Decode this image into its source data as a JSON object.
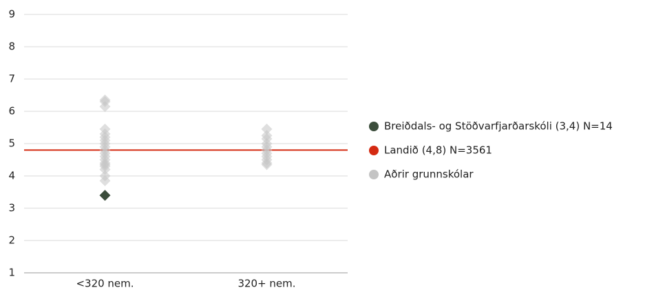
{
  "chart_data": {
    "type": "scatter",
    "categories": [
      "<320 nem.",
      "320+ nem."
    ],
    "ylim": [
      1,
      9
    ],
    "yticks": [
      1,
      2,
      3,
      4,
      5,
      6,
      7,
      8,
      9
    ],
    "grid": true,
    "legend": "right",
    "series": [
      {
        "name": "Breiðdals- og Stöðvarfjarðarskóli (3,4) N=14",
        "color": "#3b4d3b",
        "x": [
          "<320 nem."
        ],
        "values": [
          3.4
        ]
      },
      {
        "name": "Landið (4,8) N=3561",
        "color": "#d42a12",
        "kind": "hline",
        "value": 4.8
      },
      {
        "name": "Aðrir grunnskólar",
        "color": "#c4c4c4",
        "x": [
          "<320 nem.",
          "<320 nem.",
          "<320 nem.",
          "<320 nem.",
          "<320 nem.",
          "<320 nem.",
          "<320 nem.",
          "<320 nem.",
          "<320 nem.",
          "<320 nem.",
          "<320 nem.",
          "<320 nem.",
          "<320 nem.",
          "<320 nem.",
          "<320 nem.",
          "<320 nem.",
          "<320 nem.",
          "<320 nem.",
          "<320 nem.",
          "320+ nem.",
          "320+ nem.",
          "320+ nem.",
          "320+ nem.",
          "320+ nem.",
          "320+ nem.",
          "320+ nem.",
          "320+ nem.",
          "320+ nem.",
          "320+ nem.",
          "320+ nem."
        ],
        "values": [
          6.35,
          6.3,
          6.15,
          5.45,
          5.3,
          5.2,
          5.1,
          5.0,
          4.9,
          4.8,
          4.7,
          4.6,
          4.5,
          4.4,
          4.35,
          4.3,
          4.2,
          4.0,
          3.85,
          5.45,
          5.25,
          5.15,
          5.0,
          4.9,
          4.8,
          4.7,
          4.6,
          4.5,
          4.4,
          4.35
        ]
      }
    ]
  }
}
